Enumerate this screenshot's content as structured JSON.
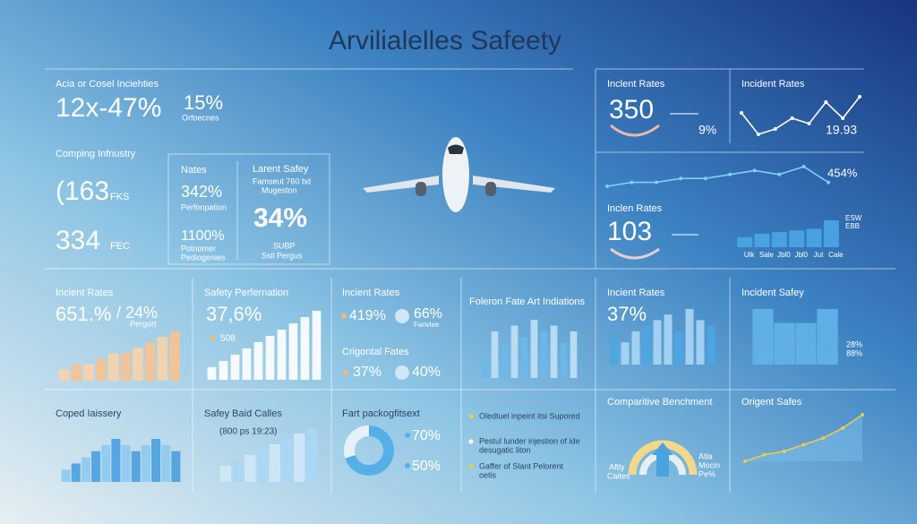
{
  "title": "Arvilialelles Safeety",
  "top_left": {
    "heading": "Acia or Cosel Inciehties",
    "big": "12x-47%",
    "side": "15%",
    "side_note": "Orfoecnes",
    "heading2": "Comping Infnustry",
    "v1": "(163",
    "u1": "FKS",
    "v2": "334",
    "u2": "FEC",
    "box1": {
      "title": "Nates",
      "v1": "342%",
      "n1": "Perfonpation",
      "v2": "1100%",
      "n2": "Potnomer",
      "n3": "Pediogenies"
    },
    "box2": {
      "title": "Larent Safey",
      "note": "Famseut 760 bd",
      "note_b": "Mugeston",
      "big": "34%",
      "note2": "SUBP",
      "note3": "Ssil Pergus"
    }
  },
  "top_right": {
    "p1": {
      "title": "Inclent Rates",
      "big": "350",
      "side": "9%"
    },
    "p2": {
      "title": "Incident Rates",
      "value": "19.93",
      "line": [
        6,
        2,
        3,
        5,
        4,
        8,
        5,
        9
      ]
    },
    "p3": {
      "value": "454%",
      "line": [
        2,
        3,
        3,
        4,
        4,
        5,
        6,
        5,
        7,
        3
      ]
    },
    "p4": {
      "title": "Inclen Rates",
      "big": "103"
    },
    "p5": {
      "legend": [
        "ESW",
        "EBB"
      ],
      "categories": [
        "Ulk",
        "Sale",
        "Jbl0",
        "Jbl0",
        "Jut",
        "Cale"
      ],
      "values": [
        3,
        4,
        4.5,
        5,
        5.5,
        8
      ]
    }
  },
  "middle": {
    "m1": {
      "title": "Incient Rates",
      "big": "651.%",
      "side": "/ 24%",
      "note": "Pergort",
      "values": [
        2,
        3,
        3,
        4,
        5,
        5,
        6,
        7,
        8,
        9
      ]
    },
    "m2": {
      "title": "Safety Perfernation",
      "big": "37,6%",
      "note": "508",
      "values": [
        2,
        3,
        4,
        5,
        6,
        7,
        8,
        9,
        10,
        11
      ]
    },
    "m3": {
      "title": "Incient Rates",
      "a": "419%",
      "b": "66%",
      "b_note": "Fanvlee",
      "title2": "Crigontal Fates",
      "c": "37%",
      "d": "40%"
    },
    "m4": {
      "title": "Foleron Fate Art Indiations",
      "values": [
        3,
        8,
        6,
        9,
        7,
        10,
        8,
        9,
        6,
        8
      ]
    },
    "m5": {
      "title": "Incient Rates",
      "big": "37%",
      "values": [
        5,
        4,
        6,
        7,
        8,
        9,
        6,
        10,
        8,
        7
      ]
    },
    "m6": {
      "title": "Incident Safey",
      "values": [
        4,
        3,
        3,
        4
      ],
      "legend": [
        "28%",
        "88%"
      ]
    }
  },
  "bottom": {
    "b1": {
      "title": "Coped Iaissery",
      "values": [
        2,
        3,
        4,
        5,
        6,
        7,
        6,
        5,
        6,
        7,
        6,
        5
      ]
    },
    "b2": {
      "title": "Safey Baid Calles",
      "note": "(800 ps 19:23)",
      "values": [
        3,
        4,
        5,
        6,
        7,
        8,
        9,
        10
      ]
    },
    "b3": {
      "title": "Fart packogfitsext",
      "values": [
        70,
        50
      ],
      "value_labels": [
        "70%",
        "50%"
      ]
    },
    "b4": {
      "items": [
        "Oledtuel inpeint itsi Supored",
        "Pestul lunder injestion of ide",
        "Gaffer of Slant Pelorent"
      ],
      "subs": [
        "",
        "desugatic liton",
        "oetis"
      ]
    },
    "b5": {
      "title": "Comparitive Benchment",
      "left": "Aftly",
      "left2": "Caites",
      "right": "Atla",
      "right2": "Mocin",
      "right3": "Pe%"
    },
    "b6": {
      "title": "Origent Safes",
      "values": [
        1,
        2,
        2.5,
        3.5,
        4.5,
        6,
        8
      ]
    }
  }
}
